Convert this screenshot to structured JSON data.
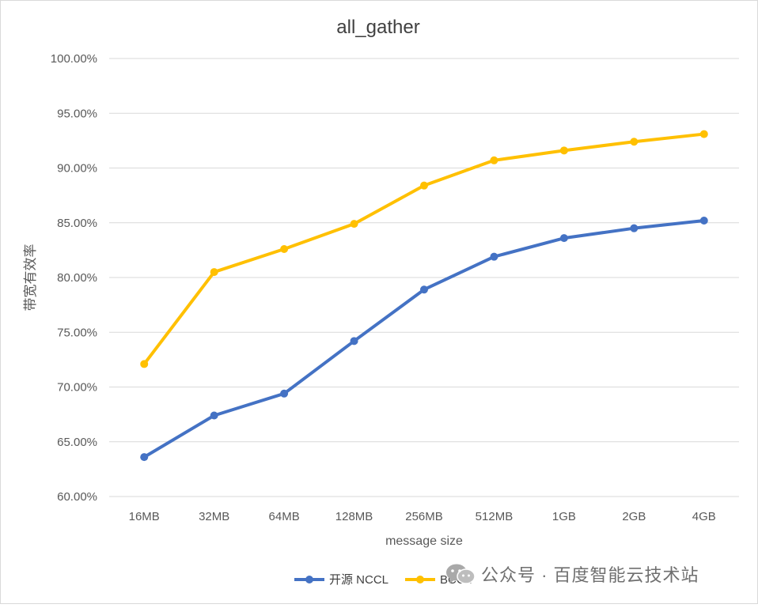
{
  "chart_data": {
    "type": "line",
    "title": "all_gather",
    "xlabel": "message size",
    "ylabel": "带宽有效率",
    "categories": [
      "16MB",
      "32MB",
      "64MB",
      "128MB",
      "256MB",
      "512MB",
      "1GB",
      "2GB",
      "4GB"
    ],
    "ylim": [
      0.6,
      1.0
    ],
    "yticks": [
      "60.00%",
      "65.00%",
      "70.00%",
      "75.00%",
      "80.00%",
      "85.00%",
      "90.00%",
      "95.00%",
      "100.00%"
    ],
    "ytick_values": [
      0.6,
      0.65,
      0.7,
      0.75,
      0.8,
      0.85,
      0.9,
      0.95,
      1.0
    ],
    "grid": true,
    "legend_position": "bottom",
    "series": [
      {
        "name": "开源 NCCL",
        "color": "#4472C4",
        "values": [
          0.636,
          0.674,
          0.694,
          0.742,
          0.789,
          0.819,
          0.836,
          0.845,
          0.852
        ]
      },
      {
        "name": "BCCL",
        "color": "#FFC000",
        "values": [
          0.721,
          0.805,
          0.826,
          0.849,
          0.884,
          0.907,
          0.916,
          0.924,
          0.931
        ]
      }
    ]
  },
  "watermark": {
    "text": "公众号 · 百度智能云技术站",
    "icon": "wechat-icon"
  }
}
